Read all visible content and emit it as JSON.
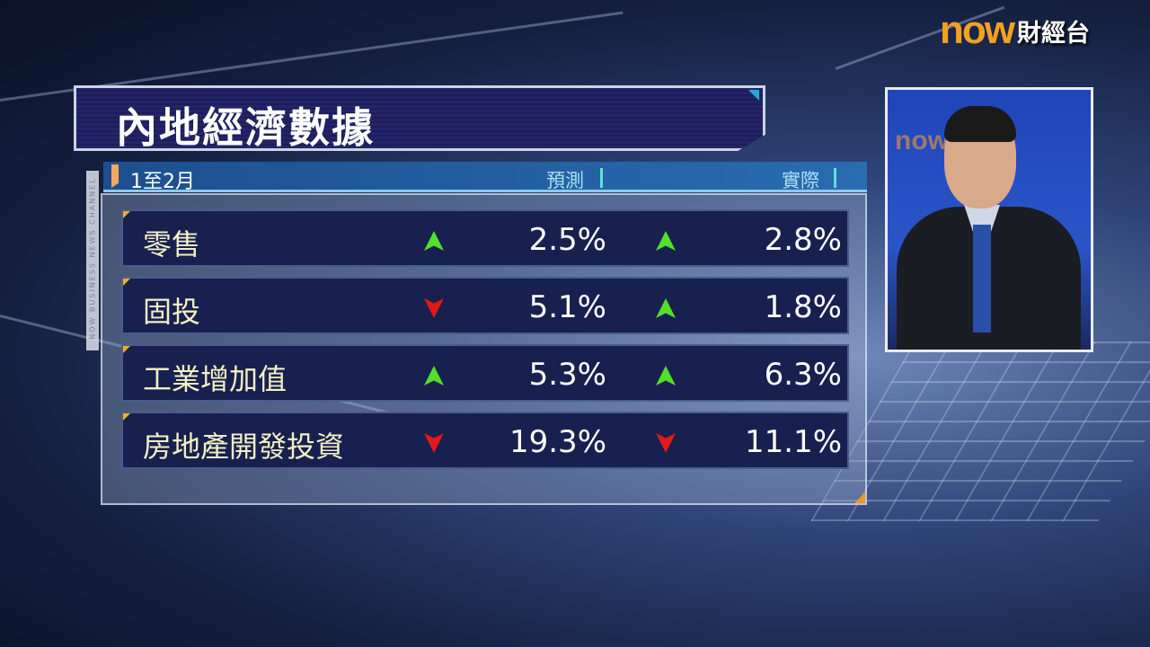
{
  "logo": {
    "brand": "now",
    "channel": "財經台"
  },
  "side_caption": "NOW BUSINESS NEWS CHANNEL",
  "title": "內地經濟數據",
  "table": {
    "period": "1至2月",
    "columns": {
      "forecast": "預測",
      "actual": "實際"
    },
    "rows": [
      {
        "label": "零售",
        "forecast": "2.5%",
        "forecast_dir": "up",
        "actual": "2.8%",
        "actual_dir": "up"
      },
      {
        "label": "固投",
        "forecast": "5.1%",
        "forecast_dir": "down",
        "actual": "1.8%",
        "actual_dir": "up"
      },
      {
        "label": "工業增加值",
        "forecast": "5.3%",
        "forecast_dir": "up",
        "actual": "6.3%",
        "actual_dir": "up"
      },
      {
        "label": "房地產開發投資",
        "forecast": "19.3%",
        "forecast_dir": "down",
        "actual": "11.1%",
        "actual_dir": "down"
      }
    ]
  },
  "colors": {
    "up": "#52e02a",
    "down": "#e11818",
    "title_bg": "#24246a",
    "logo": "#f4a020"
  },
  "inset": {
    "watermark": "now"
  }
}
